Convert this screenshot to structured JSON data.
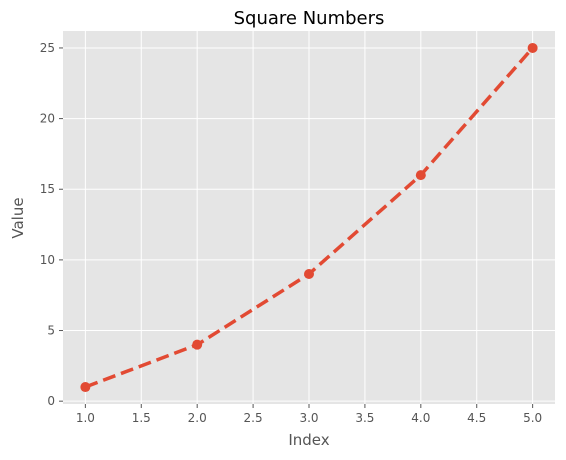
{
  "chart_data": {
    "type": "line",
    "title": "Square Numbers",
    "xlabel": "Index",
    "ylabel": "Value",
    "x": [
      1.0,
      2.0,
      3.0,
      4.0,
      5.0
    ],
    "series": [
      {
        "values": [
          1,
          4,
          9,
          16,
          25
        ]
      }
    ],
    "xlim": [
      0.8,
      5.2
    ],
    "ylim": [
      -0.2,
      26.2
    ],
    "xticks": [
      1.0,
      1.5,
      2.0,
      2.5,
      3.0,
      3.5,
      4.0,
      4.5,
      5.0
    ],
    "xtick_labels": [
      "1.0",
      "1.5",
      "2.0",
      "2.5",
      "3.0",
      "3.5",
      "4.0",
      "4.5",
      "5.0"
    ],
    "yticks": [
      0,
      5,
      10,
      15,
      20,
      25
    ],
    "ytick_labels": [
      "0",
      "5",
      "10",
      "15",
      "20",
      "25"
    ],
    "grid": true,
    "line_style": "dashed",
    "marker": "circle",
    "colors": {
      "series": "#E24A33",
      "plot_background": "#E5E5E5",
      "grid": "#FFFFFF",
      "text": "#555555",
      "title": "#000000"
    }
  }
}
